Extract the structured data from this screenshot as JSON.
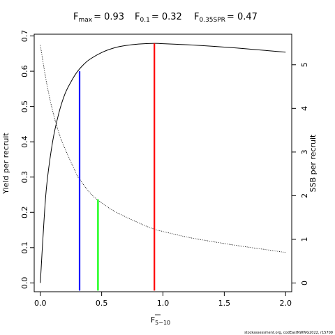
{
  "chart_data": {
    "type": "line",
    "title": {
      "fmax": {
        "label": "F",
        "sub": "max",
        "value": "= 0.93"
      },
      "f01": {
        "label": "F",
        "sub": "0.1",
        "value": "= 0.32"
      },
      "fspr": {
        "label": "F",
        "sub": "0.35SPR",
        "value": "= 0.47"
      }
    },
    "xlabel": {
      "main": "F",
      "sub": "5−10"
    },
    "ylabel_left": "Yield per recruit",
    "ylabel_right": "SSB per recruit",
    "xlim": [
      -0.05,
      2.05
    ],
    "ylim_left": [
      -0.025,
      0.705
    ],
    "ylim_right": [
      -0.2,
      5.7
    ],
    "x_ticks": [
      "0.0",
      "0.5",
      "1.0",
      "1.5",
      "2.0"
    ],
    "x_tick_values": [
      0,
      0.5,
      1.0,
      1.5,
      2.0
    ],
    "y_left_ticks": [
      "0.0",
      "0.1",
      "0.2",
      "0.3",
      "0.4",
      "0.5",
      "0.6",
      "0.7"
    ],
    "y_left_tick_values": [
      0,
      0.1,
      0.2,
      0.3,
      0.4,
      0.5,
      0.6,
      0.7
    ],
    "y_right_ticks": [
      "0",
      "1",
      "2",
      "3",
      "4",
      "5"
    ],
    "y_right_tick_values": [
      0,
      1,
      2,
      3,
      4,
      5
    ],
    "series": [
      {
        "axis": "left",
        "style": "solid",
        "color": "#000000",
        "x": [
          0,
          0.02,
          0.05,
          0.1,
          0.15,
          0.2,
          0.25,
          0.3,
          0.35,
          0.4,
          0.5,
          0.6,
          0.7,
          0.8,
          0.93,
          1.0,
          1.2,
          1.4,
          1.6,
          1.8,
          2.0
        ],
        "y": [
          0,
          0.12,
          0.27,
          0.4,
          0.48,
          0.535,
          0.57,
          0.598,
          0.618,
          0.633,
          0.653,
          0.666,
          0.673,
          0.677,
          0.679,
          0.678,
          0.675,
          0.671,
          0.666,
          0.66,
          0.654
        ]
      },
      {
        "axis": "right",
        "style": "dotted",
        "color": "#000000",
        "x": [
          0,
          0.05,
          0.1,
          0.15,
          0.2,
          0.3,
          0.32,
          0.4,
          0.47,
          0.6,
          0.8,
          0.93,
          1.0,
          1.2,
          1.4,
          1.6,
          1.8,
          2.0
        ],
        "y": [
          5.45,
          4.6,
          3.95,
          3.45,
          3.08,
          2.47,
          2.38,
          2.08,
          1.9,
          1.65,
          1.38,
          1.23,
          1.18,
          1.05,
          0.95,
          0.86,
          0.78,
          0.7
        ]
      }
    ],
    "reference_lines": [
      {
        "name": "fmax",
        "x": 0.93,
        "y": 0.679,
        "color": "#ff0000"
      },
      {
        "name": "f01",
        "x": 0.32,
        "y": 0.6,
        "color": "#0000ff"
      },
      {
        "name": "fspr",
        "x": 0.47,
        "y": 0.237,
        "color": "#00ff00"
      }
    ]
  },
  "footer": "stockassessment.org, codEastNWWG2022, r15709"
}
